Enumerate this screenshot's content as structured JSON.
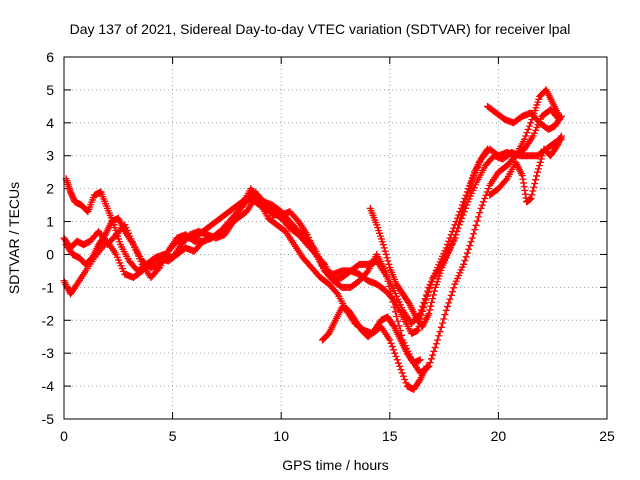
{
  "chart_data": {
    "type": "scatter",
    "title": "Day 137 of 2021, Sidereal Day-to-day VTEC variation (SDTVAR) for receiver lpal",
    "xlabel": "GPS time / hours",
    "ylabel": "SDTVAR / TECUs",
    "xlim": [
      0,
      25
    ],
    "ylim": [
      -5,
      6
    ],
    "x_ticks": [
      0,
      5,
      10,
      15,
      20,
      25
    ],
    "y_ticks": [
      -5,
      -4,
      -3,
      -2,
      -1,
      0,
      1,
      2,
      3,
      4,
      5,
      6
    ],
    "grid": true,
    "marker": "+",
    "color": "#ff0000",
    "series": [
      {
        "points": [
          [
            0.0,
            -0.8
          ],
          [
            0.3,
            -1.2
          ],
          [
            0.6,
            -0.9
          ],
          [
            1.0,
            -0.5
          ],
          [
            1.5,
            0.0
          ],
          [
            2.0,
            0.4
          ],
          [
            2.4,
            0.0
          ],
          [
            2.8,
            -0.6
          ],
          [
            3.2,
            -0.7
          ],
          [
            3.6,
            -0.5
          ],
          [
            4.0,
            -0.2
          ],
          [
            4.4,
            -0.1
          ],
          [
            4.8,
            -0.2
          ],
          [
            5.2,
            0.0
          ],
          [
            5.6,
            0.2
          ],
          [
            6.0,
            0.1
          ],
          [
            6.4,
            0.4
          ],
          [
            6.8,
            0.5
          ],
          [
            7.2,
            0.7
          ],
          [
            7.6,
            1.0
          ],
          [
            8.0,
            1.3
          ],
          [
            8.4,
            1.6
          ],
          [
            8.8,
            1.9
          ],
          [
            9.2,
            1.6
          ],
          [
            9.6,
            1.2
          ],
          [
            10.0,
            1.2
          ],
          [
            10.4,
            1.3
          ],
          [
            10.8,
            1.0
          ],
          [
            11.2,
            0.6
          ],
          [
            11.6,
            0.0
          ],
          [
            12.0,
            -0.5
          ],
          [
            12.4,
            -0.6
          ],
          [
            12.8,
            -0.5
          ],
          [
            13.2,
            -0.5
          ],
          [
            13.6,
            -0.6
          ],
          [
            14.0,
            -0.8
          ],
          [
            14.4,
            -0.9
          ],
          [
            14.8,
            -1.1
          ],
          [
            15.2,
            -1.4
          ],
          [
            15.6,
            -1.9
          ],
          [
            16.0,
            -2.4
          ],
          [
            16.3,
            -2.3
          ],
          [
            16.6,
            -1.5
          ],
          [
            17.0,
            -0.7
          ],
          [
            17.4,
            -0.3
          ],
          [
            17.8,
            0.2
          ],
          [
            18.2,
            0.9
          ],
          [
            18.6,
            1.6
          ],
          [
            19.0,
            2.2
          ],
          [
            19.4,
            2.7
          ],
          [
            19.8,
            3.0
          ],
          [
            20.2,
            2.9
          ],
          [
            20.6,
            3.1
          ],
          [
            21.0,
            3.0
          ],
          [
            21.4,
            3.0
          ],
          [
            21.8,
            3.0
          ],
          [
            22.2,
            3.2
          ],
          [
            22.6,
            3.4
          ],
          [
            22.9,
            3.5
          ]
        ]
      },
      {
        "points": [
          [
            0.1,
            2.3
          ],
          [
            0.3,
            1.9
          ],
          [
            0.5,
            1.6
          ],
          [
            0.8,
            1.5
          ],
          [
            1.1,
            1.3
          ],
          [
            1.4,
            1.8
          ],
          [
            1.7,
            1.9
          ],
          [
            2.0,
            1.4
          ],
          [
            2.3,
            0.9
          ],
          [
            2.6,
            0.3
          ],
          [
            3.0,
            -0.2
          ],
          [
            3.4,
            -0.5
          ],
          [
            3.8,
            -0.3
          ],
          [
            4.2,
            -0.1
          ],
          [
            4.6,
            0.0
          ],
          [
            5.0,
            -0.1
          ],
          [
            5.4,
            0.3
          ],
          [
            5.8,
            0.6
          ],
          [
            6.2,
            0.7
          ],
          [
            6.6,
            0.6
          ],
          [
            7.0,
            0.5
          ],
          [
            7.4,
            0.6
          ],
          [
            7.8,
            1.0
          ],
          [
            8.2,
            1.5
          ],
          [
            8.6,
            2.0
          ],
          [
            9.0,
            1.6
          ],
          [
            9.4,
            1.1
          ],
          [
            9.8,
            0.9
          ],
          [
            10.2,
            0.7
          ],
          [
            10.6,
            0.3
          ],
          [
            11.0,
            -0.1
          ],
          [
            11.4,
            -0.4
          ],
          [
            11.8,
            -0.7
          ],
          [
            12.2,
            -0.9
          ],
          [
            12.6,
            -1.2
          ],
          [
            13.0,
            -1.7
          ],
          [
            13.4,
            -2.1
          ],
          [
            13.8,
            -2.3
          ],
          [
            14.2,
            -2.4
          ],
          [
            14.6,
            -2.2
          ],
          [
            15.0,
            -2.6
          ],
          [
            15.4,
            -3.3
          ],
          [
            15.8,
            -4.0
          ],
          [
            16.1,
            -4.1
          ],
          [
            16.4,
            -3.8
          ],
          [
            16.7,
            -3.4
          ]
        ]
      },
      {
        "points": [
          [
            0.0,
            0.5
          ],
          [
            0.3,
            0.2
          ],
          [
            0.6,
            0.4
          ],
          [
            0.9,
            0.3
          ],
          [
            1.2,
            0.4
          ],
          [
            1.6,
            0.7
          ],
          [
            2.0,
            0.3
          ],
          [
            2.4,
            0.6
          ],
          [
            2.8,
            0.9
          ],
          [
            3.2,
            0.3
          ],
          [
            3.6,
            -0.3
          ],
          [
            4.0,
            -0.7
          ],
          [
            4.4,
            -0.4
          ],
          [
            4.8,
            0.1
          ],
          [
            5.2,
            0.4
          ],
          [
            5.6,
            0.5
          ],
          [
            6.0,
            0.5
          ],
          [
            6.4,
            0.7
          ],
          [
            6.8,
            0.9
          ],
          [
            7.2,
            1.1
          ],
          [
            7.6,
            1.3
          ],
          [
            8.0,
            1.5
          ],
          [
            8.4,
            1.7
          ],
          [
            8.8,
            1.6
          ],
          [
            9.2,
            1.4
          ],
          [
            9.6,
            1.3
          ],
          [
            10.0,
            1.1
          ],
          [
            10.4,
            0.8
          ],
          [
            10.8,
            0.6
          ],
          [
            11.2,
            0.3
          ],
          [
            11.6,
            0.0
          ],
          [
            12.0,
            -0.3
          ],
          [
            12.4,
            -0.8
          ],
          [
            12.8,
            -1.0
          ],
          [
            13.2,
            -1.0
          ],
          [
            13.6,
            -0.8
          ],
          [
            14.0,
            -0.5
          ],
          [
            14.4,
            0.0
          ],
          [
            14.8,
            -0.5
          ],
          [
            15.2,
            -1.6
          ],
          [
            15.6,
            -2.6
          ],
          [
            16.0,
            -3.2
          ],
          [
            16.4,
            -3.6
          ],
          [
            16.8,
            -3.4
          ],
          [
            17.2,
            -2.6
          ],
          [
            17.6,
            -1.7
          ],
          [
            18.0,
            -0.9
          ],
          [
            18.4,
            -0.3
          ],
          [
            18.8,
            0.5
          ],
          [
            19.2,
            1.4
          ],
          [
            19.6,
            2.1
          ],
          [
            20.0,
            2.5
          ],
          [
            20.4,
            2.7
          ],
          [
            20.8,
            3.0
          ],
          [
            21.2,
            3.5
          ],
          [
            21.6,
            4.2
          ],
          [
            21.9,
            4.8
          ],
          [
            22.2,
            5.0
          ],
          [
            22.5,
            4.6
          ],
          [
            22.8,
            4.2
          ]
        ]
      },
      {
        "points": [
          [
            0.1,
            0.3
          ],
          [
            0.4,
            0.0
          ],
          [
            0.7,
            -0.1
          ],
          [
            1.0,
            -0.3
          ],
          [
            1.3,
            -0.1
          ],
          [
            1.6,
            0.3
          ],
          [
            1.9,
            0.6
          ],
          [
            2.2,
            1.0
          ],
          [
            2.5,
            1.1
          ],
          [
            2.8,
            0.7
          ],
          [
            3.2,
            0.3
          ],
          [
            3.6,
            -0.2
          ],
          [
            4.0,
            -0.4
          ],
          [
            4.4,
            -0.3
          ],
          [
            4.8,
            0.1
          ],
          [
            5.2,
            0.5
          ],
          [
            5.6,
            0.6
          ],
          [
            6.0,
            0.4
          ],
          [
            6.4,
            0.4
          ],
          [
            6.8,
            0.5
          ],
          [
            7.2,
            0.7
          ],
          [
            7.6,
            0.9
          ],
          [
            8.0,
            1.1
          ],
          [
            8.4,
            1.3
          ],
          [
            8.8,
            1.7
          ],
          [
            9.2,
            1.6
          ],
          [
            9.6,
            1.5
          ],
          [
            10.0,
            1.3
          ],
          [
            10.4,
            1.0
          ],
          [
            10.8,
            0.7
          ],
          [
            11.2,
            0.5
          ],
          [
            11.6,
            0.1
          ],
          [
            12.0,
            -0.5
          ],
          [
            12.4,
            -0.8
          ],
          [
            12.8,
            -0.7
          ],
          [
            13.2,
            -0.5
          ],
          [
            13.6,
            -0.3
          ],
          [
            14.0,
            -0.3
          ],
          [
            14.4,
            -0.2
          ],
          [
            14.8,
            -0.6
          ],
          [
            15.2,
            -1.1
          ],
          [
            15.6,
            -1.7
          ],
          [
            16.0,
            -2.1
          ],
          [
            16.4,
            -1.8
          ],
          [
            16.8,
            -1.0
          ],
          [
            17.2,
            -0.4
          ],
          [
            17.6,
            0.2
          ],
          [
            18.0,
            0.9
          ],
          [
            18.4,
            1.6
          ],
          [
            18.8,
            2.3
          ],
          [
            19.2,
            2.9
          ],
          [
            19.6,
            3.2
          ],
          [
            20.0,
            3.0
          ],
          [
            20.4,
            3.1
          ],
          [
            20.8,
            3.0
          ],
          [
            21.2,
            3.2
          ],
          [
            21.6,
            3.6
          ],
          [
            22.0,
            4.2
          ],
          [
            22.4,
            4.4
          ],
          [
            22.8,
            4.1
          ]
        ]
      },
      {
        "points": [
          [
            11.9,
            -2.6
          ],
          [
            12.2,
            -2.4
          ],
          [
            12.5,
            -2.0
          ],
          [
            12.8,
            -1.6
          ],
          [
            13.1,
            -1.7
          ],
          [
            13.4,
            -2.0
          ],
          [
            13.7,
            -2.3
          ],
          [
            14.0,
            -2.5
          ],
          [
            14.3,
            -2.3
          ],
          [
            14.6,
            -2.0
          ],
          [
            14.9,
            -1.9
          ],
          [
            15.2,
            -2.2
          ],
          [
            15.5,
            -2.6
          ],
          [
            15.8,
            -3.0
          ],
          [
            16.1,
            -3.3
          ],
          [
            16.4,
            -3.2
          ]
        ]
      },
      {
        "points": [
          [
            14.1,
            1.4
          ],
          [
            14.4,
            0.9
          ],
          [
            14.7,
            0.3
          ],
          [
            15.0,
            -0.4
          ],
          [
            15.3,
            -0.9
          ],
          [
            15.6,
            -1.2
          ],
          [
            15.9,
            -1.5
          ],
          [
            16.2,
            -1.9
          ],
          [
            16.5,
            -2.2
          ],
          [
            16.8,
            -1.8
          ],
          [
            17.1,
            -1.0
          ],
          [
            17.4,
            -0.4
          ],
          [
            17.7,
            0.1
          ],
          [
            18.0,
            0.5
          ],
          [
            18.3,
            1.2
          ],
          [
            18.6,
            1.9
          ],
          [
            18.9,
            2.5
          ],
          [
            19.2,
            2.9
          ],
          [
            19.5,
            3.2
          ]
        ]
      },
      {
        "points": [
          [
            19.5,
            4.5
          ],
          [
            19.9,
            4.3
          ],
          [
            20.3,
            4.1
          ],
          [
            20.7,
            4.0
          ],
          [
            21.1,
            4.2
          ],
          [
            21.5,
            4.3
          ],
          [
            21.9,
            4.0
          ],
          [
            22.3,
            3.8
          ],
          [
            22.6,
            3.9
          ],
          [
            22.9,
            4.2
          ]
        ]
      },
      {
        "points": [
          [
            19.6,
            1.8
          ],
          [
            20.0,
            2.0
          ],
          [
            20.4,
            2.3
          ],
          [
            20.8,
            2.8
          ],
          [
            21.1,
            2.4
          ],
          [
            21.3,
            1.6
          ],
          [
            21.5,
            1.7
          ],
          [
            21.8,
            2.5
          ],
          [
            22.1,
            3.2
          ],
          [
            22.4,
            3.0
          ],
          [
            22.7,
            3.3
          ],
          [
            22.9,
            3.6
          ]
        ]
      }
    ]
  }
}
